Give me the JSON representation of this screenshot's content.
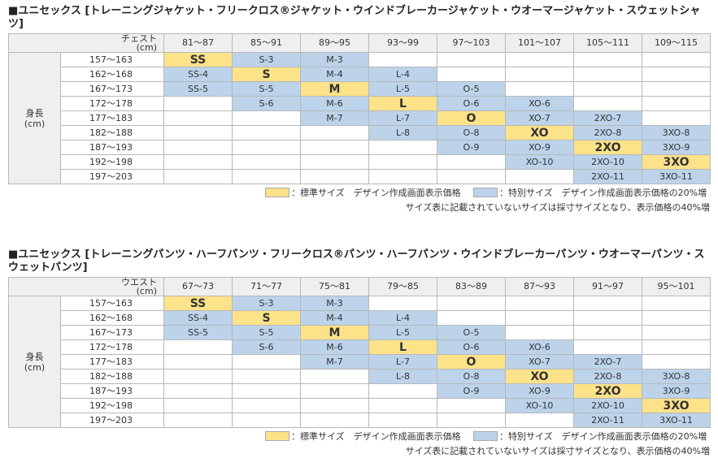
{
  "tables": [
    {
      "title": "■ユニセックス [トレーニングジャケット・フリークロス®ジャケット・ウインドブレーカージャケット・ウオーマージャケット・スウェットシャツ]",
      "corner_line1": "チェスト",
      "corner_line2": "(cm)",
      "columns": [
        "81～87",
        "85～91",
        "89～95",
        "93～99",
        "97～103",
        "101～107",
        "105～111",
        "109～115"
      ],
      "row_group_line1": "身長",
      "row_group_line2": "(cm)",
      "rows": [
        {
          "height": "157～163",
          "cells": [
            "SS",
            "S-3",
            "M-3",
            "",
            "",
            "",
            "",
            ""
          ]
        },
        {
          "height": "162～168",
          "cells": [
            "SS-4",
            "S",
            "M-4",
            "L-4",
            "",
            "",
            "",
            ""
          ]
        },
        {
          "height": "167～173",
          "cells": [
            "SS-5",
            "S-5",
            "M",
            "L-5",
            "O-5",
            "",
            "",
            ""
          ]
        },
        {
          "height": "172～178",
          "cells": [
            "",
            "S-6",
            "M-6",
            "L",
            "O-6",
            "XO-6",
            "",
            ""
          ]
        },
        {
          "height": "177～183",
          "cells": [
            "",
            "",
            "M-7",
            "L-7",
            "O",
            "XO-7",
            "2XO-7",
            ""
          ]
        },
        {
          "height": "182～188",
          "cells": [
            "",
            "",
            "",
            "L-8",
            "O-8",
            "XO",
            "2XO-8",
            "3XO-8"
          ]
        },
        {
          "height": "187～193",
          "cells": [
            "",
            "",
            "",
            "",
            "O-9",
            "XO-9",
            "2XO",
            "3XO-9"
          ]
        },
        {
          "height": "192～198",
          "cells": [
            "",
            "",
            "",
            "",
            "",
            "XO-10",
            "2XO-10",
            "3XO"
          ]
        },
        {
          "height": "197～203",
          "cells": [
            "",
            "",
            "",
            "",
            "",
            "",
            "2XO-11",
            "3XO-11"
          ]
        }
      ],
      "cell_types": [
        [
          "std",
          "sp",
          "sp",
          "e",
          "e",
          "e",
          "e",
          "e"
        ],
        [
          "sp",
          "std",
          "sp",
          "sp",
          "e",
          "e",
          "e",
          "e"
        ],
        [
          "sp",
          "sp",
          "std",
          "sp",
          "sp",
          "e",
          "e",
          "e"
        ],
        [
          "e",
          "sp",
          "sp",
          "std",
          "sp",
          "sp",
          "e",
          "e"
        ],
        [
          "e",
          "e",
          "sp",
          "sp",
          "std",
          "sp",
          "sp",
          "e"
        ],
        [
          "e",
          "e",
          "e",
          "sp",
          "sp",
          "std",
          "sp",
          "sp"
        ],
        [
          "e",
          "e",
          "e",
          "e",
          "sp",
          "sp",
          "std",
          "sp"
        ],
        [
          "e",
          "e",
          "e",
          "e",
          "e",
          "sp",
          "sp",
          "std"
        ],
        [
          "e",
          "e",
          "e",
          "e",
          "e",
          "e",
          "sp",
          "sp"
        ]
      ]
    },
    {
      "title": "■ユニセックス [トレーニングパンツ・ハーフパンツ・フリークロス®パンツ・ハーフパンツ・ウインドブレーカーパンツ・ウオーマーパンツ・スウェットパンツ]",
      "corner_line1": "ウエスト",
      "corner_line2": "(cm)",
      "columns": [
        "67～73",
        "71～77",
        "75～81",
        "79～85",
        "83～89",
        "87～93",
        "91～97",
        "95～101"
      ],
      "row_group_line1": "身長",
      "row_group_line2": "(cm)",
      "rows": [
        {
          "height": "157～163",
          "cells": [
            "SS",
            "S-3",
            "M-3",
            "",
            "",
            "",
            "",
            ""
          ]
        },
        {
          "height": "162～168",
          "cells": [
            "SS-4",
            "S",
            "M-4",
            "L-4",
            "",
            "",
            "",
            ""
          ]
        },
        {
          "height": "167～173",
          "cells": [
            "SS-5",
            "S-5",
            "M",
            "L-5",
            "O-5",
            "",
            "",
            ""
          ]
        },
        {
          "height": "172～178",
          "cells": [
            "",
            "S-6",
            "M-6",
            "L",
            "O-6",
            "XO-6",
            "",
            ""
          ]
        },
        {
          "height": "177～183",
          "cells": [
            "",
            "",
            "M-7",
            "L-7",
            "O",
            "XO-7",
            "2XO-7",
            ""
          ]
        },
        {
          "height": "182～188",
          "cells": [
            "",
            "",
            "",
            "L-8",
            "O-8",
            "XO",
            "2XO-8",
            "3XO-8"
          ]
        },
        {
          "height": "187～193",
          "cells": [
            "",
            "",
            "",
            "",
            "O-9",
            "XO-9",
            "2XO",
            "3XO-9"
          ]
        },
        {
          "height": "192～198",
          "cells": [
            "",
            "",
            "",
            "",
            "",
            "XO-10",
            "2XO-10",
            "3XO"
          ]
        },
        {
          "height": "197～203",
          "cells": [
            "",
            "",
            "",
            "",
            "",
            "",
            "2XO-11",
            "3XO-11"
          ]
        }
      ],
      "cell_types": [
        [
          "std",
          "sp",
          "sp",
          "e",
          "e",
          "e",
          "e",
          "e"
        ],
        [
          "sp",
          "std",
          "sp",
          "sp",
          "e",
          "e",
          "e",
          "e"
        ],
        [
          "sp",
          "sp",
          "std",
          "sp",
          "sp",
          "e",
          "e",
          "e"
        ],
        [
          "e",
          "sp",
          "sp",
          "std",
          "sp",
          "sp",
          "e",
          "e"
        ],
        [
          "e",
          "e",
          "sp",
          "sp",
          "std",
          "sp",
          "sp",
          "e"
        ],
        [
          "e",
          "e",
          "e",
          "sp",
          "sp",
          "std",
          "sp",
          "sp"
        ],
        [
          "e",
          "e",
          "e",
          "e",
          "sp",
          "sp",
          "std",
          "sp"
        ],
        [
          "e",
          "e",
          "e",
          "e",
          "e",
          "sp",
          "sp",
          "std"
        ],
        [
          "e",
          "e",
          "e",
          "e",
          "e",
          "e",
          "sp",
          "sp"
        ]
      ]
    }
  ],
  "legend": {
    "standard": "：標準サイズ　デザイン作成画面表示価格",
    "special": "：特別サイズ　デザイン作成画面表示価格の20%増",
    "note": "サイズ表に記載されていないサイズは採寸サイズとなり、表示価格の40%増"
  },
  "colors": {
    "standard": "#fce289",
    "special": "#bcd3ea",
    "header": "#efefef",
    "border": "#b8b8b8"
  }
}
